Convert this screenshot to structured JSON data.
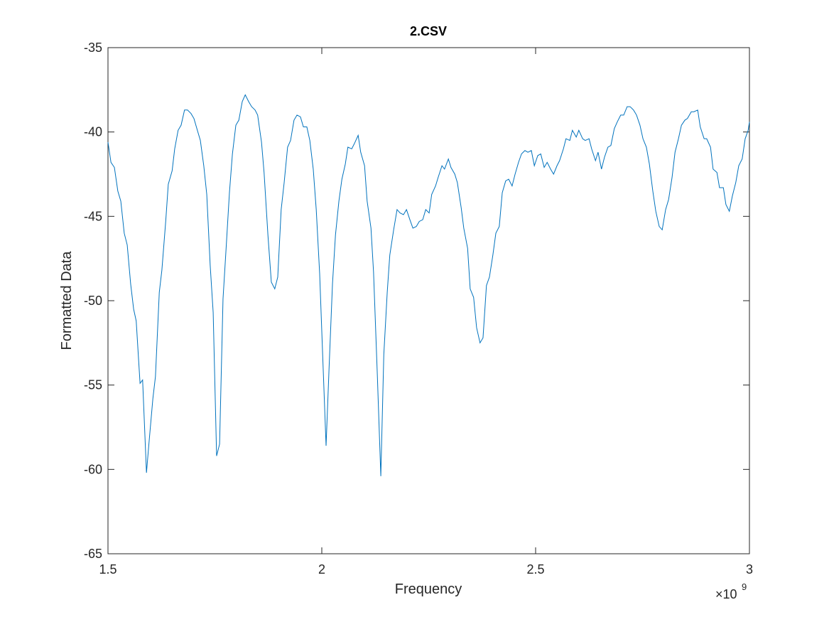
{
  "chart_data": {
    "type": "line",
    "title": "2.CSV",
    "x_label": "Frequency",
    "y_label": "Formatted Data",
    "x_multiplier": "×10",
    "x_multiplier_exponent": "9",
    "xlim": [
      1.5,
      3
    ],
    "xticks": [
      1.5,
      2,
      2.5,
      3
    ],
    "ylim": [
      -65,
      -35
    ],
    "yticks": [
      -65,
      -60,
      -55,
      -50,
      -45,
      -40,
      -35
    ],
    "grid": false,
    "series": [
      {
        "name": "2.CSV",
        "color": "#0072bd",
        "x": [
          1.5,
          1.507,
          1.515,
          1.523,
          1.53,
          1.538,
          1.545,
          1.553,
          1.56,
          1.566,
          1.575,
          1.581,
          1.59,
          1.596,
          1.605,
          1.611,
          1.62,
          1.626,
          1.635,
          1.641,
          1.65,
          1.656,
          1.664,
          1.671,
          1.679,
          1.686,
          1.694,
          1.701,
          1.709,
          1.716,
          1.724,
          1.731,
          1.739,
          1.746,
          1.754,
          1.761,
          1.769,
          1.776,
          1.784,
          1.791,
          1.799,
          1.806,
          1.814,
          1.821,
          1.829,
          1.836,
          1.844,
          1.85,
          1.859,
          1.865,
          1.874,
          1.882,
          1.89,
          1.897,
          1.905,
          1.912,
          1.92,
          1.927,
          1.935,
          1.942,
          1.95,
          1.957,
          1.965,
          1.972,
          1.98,
          1.987,
          1.995,
          2.002,
          2.01,
          2.017,
          2.025,
          2.032,
          2.04,
          2.047,
          2.055,
          2.061,
          2.07,
          2.076,
          2.085,
          2.091,
          2.1,
          2.106,
          2.115,
          2.121,
          2.13,
          2.138,
          2.145,
          2.153,
          2.159,
          2.168,
          2.176,
          2.183,
          2.191,
          2.198,
          2.206,
          2.213,
          2.221,
          2.228,
          2.236,
          2.243,
          2.251,
          2.257,
          2.266,
          2.272,
          2.281,
          2.287,
          2.296,
          2.302,
          2.311,
          2.317,
          2.326,
          2.332,
          2.341,
          2.347,
          2.355,
          2.362,
          2.37,
          2.377,
          2.385,
          2.392,
          2.4,
          2.407,
          2.415,
          2.422,
          2.43,
          2.437,
          2.445,
          2.452,
          2.46,
          2.467,
          2.475,
          2.482,
          2.49,
          2.497,
          2.505,
          2.512,
          2.52,
          2.527,
          2.535,
          2.542,
          2.55,
          2.556,
          2.565,
          2.571,
          2.58,
          2.586,
          2.595,
          2.601,
          2.61,
          2.616,
          2.625,
          2.631,
          2.64,
          2.646,
          2.654,
          2.661,
          2.669,
          2.676,
          2.684,
          2.691,
          2.699,
          2.706,
          2.714,
          2.721,
          2.729,
          2.736,
          2.744,
          2.751,
          2.759,
          2.766,
          2.774,
          2.781,
          2.789,
          2.796,
          2.804,
          2.811,
          2.819,
          2.826,
          2.834,
          2.841,
          2.849,
          2.855,
          2.864,
          2.87,
          2.879,
          2.885,
          2.894,
          2.9,
          2.909,
          2.915,
          2.924,
          2.93,
          2.939,
          2.945,
          2.953,
          2.96,
          2.968,
          2.975,
          2.983,
          2.99,
          2.997,
          3.0
        ],
        "values": [
          -40.6,
          -41.8,
          -42.1,
          -43.5,
          -44.1,
          -46.0,
          -46.7,
          -49.0,
          -50.5,
          -51.2,
          -54.9,
          -54.7,
          -60.2,
          -58.4,
          -55.8,
          -54.5,
          -49.5,
          -48.2,
          -45.3,
          -43.1,
          -42.3,
          -41.0,
          -39.9,
          -39.6,
          -38.7,
          -38.7,
          -38.9,
          -39.2,
          -39.9,
          -40.5,
          -42.0,
          -43.7,
          -47.9,
          -50.7,
          -59.2,
          -58.5,
          -49.9,
          -47.0,
          -43.6,
          -41.3,
          -39.6,
          -39.3,
          -38.2,
          -37.8,
          -38.2,
          -38.5,
          -38.7,
          -39.0,
          -40.6,
          -42.4,
          -46.1,
          -48.9,
          -49.3,
          -48.6,
          -44.6,
          -43.0,
          -40.9,
          -40.5,
          -39.3,
          -39.0,
          -39.1,
          -39.7,
          -39.7,
          -40.5,
          -42.2,
          -44.6,
          -48.4,
          -53.2,
          -58.6,
          -54.0,
          -49.0,
          -46.1,
          -44.1,
          -42.8,
          -41.9,
          -40.9,
          -41.0,
          -40.7,
          -40.2,
          -41.2,
          -42.0,
          -44.1,
          -45.7,
          -48.3,
          -54.5,
          -60.4,
          -53.2,
          -49.5,
          -47.3,
          -45.8,
          -44.6,
          -44.8,
          -44.9,
          -44.6,
          -45.2,
          -45.7,
          -45.6,
          -45.3,
          -45.2,
          -44.6,
          -44.8,
          -43.7,
          -43.2,
          -42.7,
          -42.0,
          -42.2,
          -41.6,
          -42.1,
          -42.5,
          -43.0,
          -44.5,
          -45.7,
          -46.9,
          -49.3,
          -49.8,
          -51.6,
          -52.5,
          -52.2,
          -49.1,
          -48.6,
          -47.3,
          -46.0,
          -45.6,
          -43.6,
          -42.9,
          -42.8,
          -43.2,
          -42.5,
          -41.8,
          -41.3,
          -41.1,
          -41.2,
          -41.1,
          -42.0,
          -41.4,
          -41.3,
          -42.1,
          -41.8,
          -42.2,
          -42.5,
          -42.0,
          -41.7,
          -41.0,
          -40.4,
          -40.5,
          -39.9,
          -40.3,
          -39.9,
          -40.4,
          -40.5,
          -40.4,
          -41.0,
          -41.7,
          -41.2,
          -42.2,
          -41.5,
          -40.9,
          -40.8,
          -39.8,
          -39.4,
          -39.0,
          -39.0,
          -38.5,
          -38.5,
          -38.7,
          -39.0,
          -39.6,
          -40.4,
          -40.9,
          -41.9,
          -43.5,
          -44.7,
          -45.6,
          -45.8,
          -44.6,
          -44.0,
          -42.7,
          -41.2,
          -40.4,
          -39.6,
          -39.3,
          -39.2,
          -38.8,
          -38.8,
          -38.7,
          -39.7,
          -40.4,
          -40.4,
          -40.9,
          -42.2,
          -42.4,
          -43.3,
          -43.3,
          -44.3,
          -44.7,
          -43.8,
          -43.0,
          -42.0,
          -41.6,
          -40.4,
          -39.9,
          -39.4
        ]
      }
    ]
  }
}
